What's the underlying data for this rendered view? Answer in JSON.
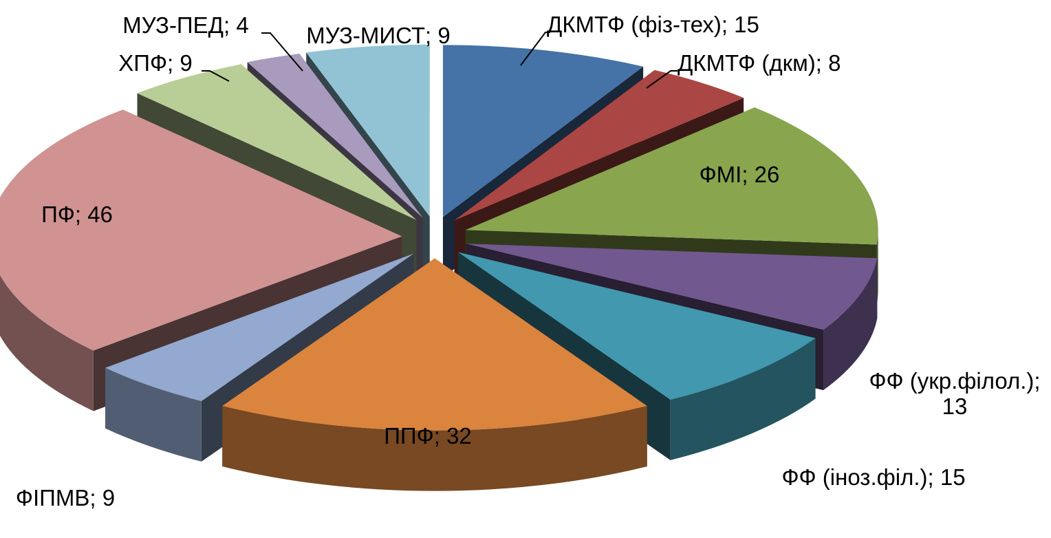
{
  "chart_data": {
    "type": "pie",
    "style": "3d-exploded",
    "title": "",
    "slices": [
      {
        "name": "ДКМТФ (фіз-тех)",
        "value": 15,
        "color": "#4572a7",
        "label": "ДКМТФ (фіз-тех); 15"
      },
      {
        "name": "ДКМТФ (дкм)",
        "value": 8,
        "color": "#aa4643",
        "label": "ДКМТФ (дкм); 8"
      },
      {
        "name": "ФМІ",
        "value": 26,
        "color": "#89a54e",
        "label": "ФМІ; 26"
      },
      {
        "name": "ФФ (укр.філол.)",
        "value": 13,
        "color": "#71588f",
        "label": "ФФ (укр.філол.);",
        "label2": "13"
      },
      {
        "name": "ФФ (іноз.філ.)",
        "value": 15,
        "color": "#4198af",
        "label": "ФФ (іноз.філ.); 15"
      },
      {
        "name": "ППФ",
        "value": 32,
        "color": "#db843d",
        "label": "ППФ; 32"
      },
      {
        "name": "ФІПМВ",
        "value": 9,
        "color": "#93a9cf",
        "label": "ФІПМВ; 9"
      },
      {
        "name": "ПФ",
        "value": 46,
        "color": "#d09392",
        "label": "ПФ; 46"
      },
      {
        "name": "ХПФ",
        "value": 9,
        "color": "#b9cd96",
        "label": "ХПФ; 9"
      },
      {
        "name": "МУЗ-ПЕД",
        "value": 4,
        "color": "#a99bbd",
        "label": "МУЗ-ПЕД; 4"
      },
      {
        "name": "МУЗ-МИСТ",
        "value": 9,
        "color": "#92c3d4",
        "label": "МУЗ-МИСТ; 9"
      }
    ]
  }
}
